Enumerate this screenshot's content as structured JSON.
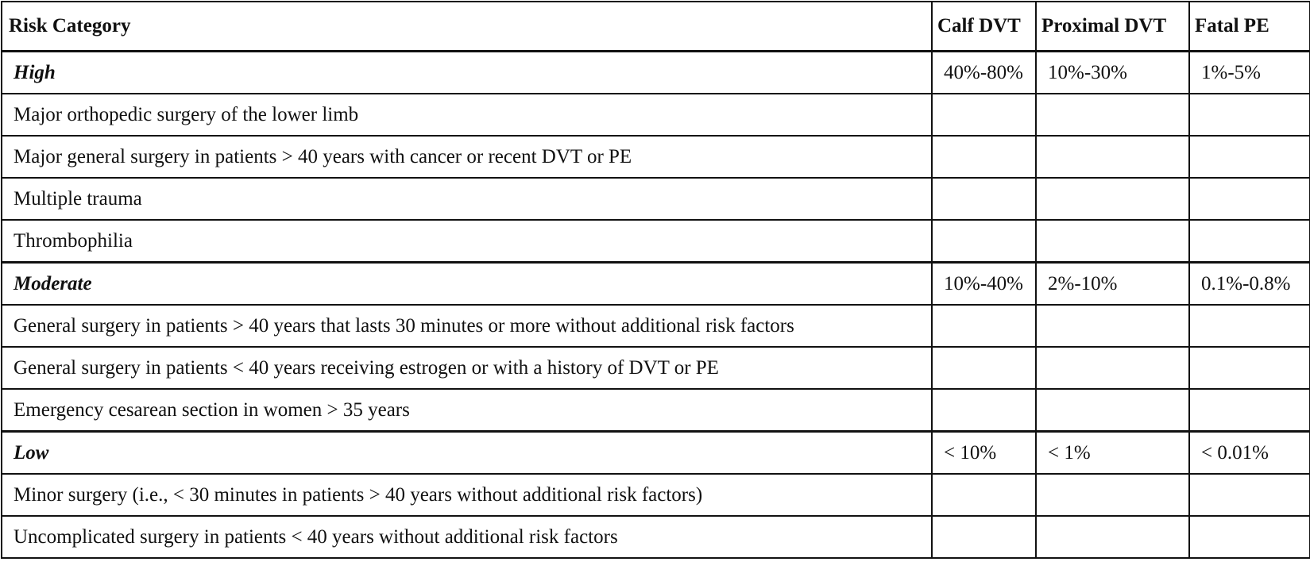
{
  "table": {
    "header": [
      "Risk Category",
      "Calf DVT",
      "Proximal DVT",
      "Fatal PE"
    ],
    "groups": [
      {
        "label": "High",
        "values": [
          "40%-80%",
          "10%-30%",
          "1%-5%"
        ],
        "items": [
          "Major orthopedic surgery of the lower limb",
          "Major general surgery in patients > 40 years with cancer or recent DVT or PE",
          "Multiple trauma",
          "Thrombophilia"
        ]
      },
      {
        "label": "Moderate",
        "values": [
          "10%-40%",
          "2%-10%",
          "0.1%-0.8%"
        ],
        "items": [
          "General surgery in patients > 40 years that lasts 30 minutes or more without additional risk factors",
          "General surgery in patients < 40 years receiving estrogen or with a history of DVT or PE",
          "Emergency cesarean section in women > 35 years"
        ]
      },
      {
        "label": "Low",
        "values": [
          "< 10%",
          "< 1%",
          "< 0.01%"
        ],
        "items": [
          "Minor surgery (i.e., < 30 minutes in patients > 40 years without additional risk factors)",
          "Uncomplicated surgery in patients < 40 years without additional risk factors"
        ]
      }
    ]
  }
}
